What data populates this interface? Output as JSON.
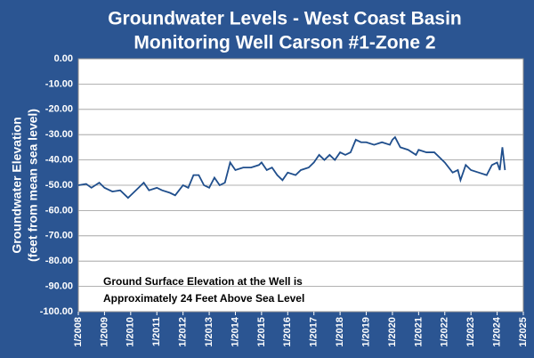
{
  "chart_data": {
    "type": "line",
    "title": [
      "Groundwater Levels - West Coast Basin",
      "Monitoring Well Carson #1-Zone 2"
    ],
    "y_label": [
      "Groundwater Elevation",
      "(feet from mean sea level)"
    ],
    "annotation": [
      "Ground Surface Elevation at the Well is",
      "Approximately 24 Feet  Above Sea Level"
    ],
    "x": [
      2008.0,
      2008.3,
      2008.5,
      2008.8,
      2009.0,
      2009.3,
      2009.6,
      2009.9,
      2010.0,
      2010.3,
      2010.5,
      2010.7,
      2011.0,
      2011.2,
      2011.5,
      2011.7,
      2012.0,
      2012.2,
      2012.4,
      2012.6,
      2012.8,
      2013.0,
      2013.2,
      2013.4,
      2013.6,
      2013.8,
      2014.0,
      2014.3,
      2014.6,
      2014.9,
      2015.0,
      2015.2,
      2015.4,
      2015.6,
      2015.8,
      2016.0,
      2016.3,
      2016.5,
      2016.8,
      2017.0,
      2017.2,
      2017.4,
      2017.6,
      2017.8,
      2018.0,
      2018.2,
      2018.4,
      2018.6,
      2018.8,
      2019.0,
      2019.3,
      2019.6,
      2019.9,
      2020.0,
      2020.1,
      2020.3,
      2020.6,
      2020.9,
      2021.0,
      2021.3,
      2021.6,
      2021.8,
      2022.0,
      2022.3,
      2022.5,
      2022.6,
      2022.8,
      2023.0,
      2023.3,
      2023.6,
      2023.8,
      2024.0,
      2024.1,
      2024.2,
      2024.3
    ],
    "series": [
      {
        "color": "#1f4e8c",
        "values": [
          -50,
          -49.5,
          -51,
          -49,
          -51,
          -52.5,
          -52,
          -55,
          -54,
          -51,
          -49,
          -52,
          -51,
          -52,
          -53,
          -54,
          -50,
          -51,
          -46,
          -46,
          -50,
          -51,
          -47,
          -50,
          -49,
          -41,
          -44,
          -43,
          -43,
          -42,
          -41,
          -44,
          -43,
          -46,
          -48,
          -45,
          -46,
          -44,
          -43,
          -41,
          -38,
          -40,
          -38,
          -40,
          -37,
          -38,
          -37,
          -32,
          -33,
          -33,
          -34,
          -33,
          -34,
          -32,
          -31,
          -35,
          -36,
          -38,
          -36,
          -37,
          -37,
          -39,
          -41,
          -45,
          -44,
          -48,
          -42,
          -44,
          -45,
          -46,
          -42,
          -41,
          -44,
          -35,
          -44
        ]
      }
    ],
    "xlim": [
      2008,
      2025
    ],
    "xticks": [
      {
        "value": 2008,
        "label": "1/2008"
      },
      {
        "value": 2009,
        "label": "1/2009"
      },
      {
        "value": 2010,
        "label": "1/2010"
      },
      {
        "value": 2011,
        "label": "1/2011"
      },
      {
        "value": 2012,
        "label": "1/2012"
      },
      {
        "value": 2013,
        "label": "1/2013"
      },
      {
        "value": 2014,
        "label": "1/2014"
      },
      {
        "value": 2015,
        "label": "1/2015"
      },
      {
        "value": 2016,
        "label": "1/2016"
      },
      {
        "value": 2017,
        "label": "1/2017"
      },
      {
        "value": 2018,
        "label": "1/2018"
      },
      {
        "value": 2019,
        "label": "1/2019"
      },
      {
        "value": 2020,
        "label": "1/2020"
      },
      {
        "value": 2021,
        "label": "1/2021"
      },
      {
        "value": 2022,
        "label": "1/2022"
      },
      {
        "value": 2023,
        "label": "1/2023"
      },
      {
        "value": 2024,
        "label": "1/2024"
      },
      {
        "value": 2025,
        "label": "1/2025"
      }
    ],
    "ylim": [
      -100,
      0
    ],
    "yticks": [
      {
        "value": 0,
        "label": "0.00"
      },
      {
        "value": -10,
        "label": "-10.00"
      },
      {
        "value": -20,
        "label": "-20.00"
      },
      {
        "value": -30,
        "label": "-30.00"
      },
      {
        "value": -40,
        "label": "-40.00"
      },
      {
        "value": -50,
        "label": "-50.00"
      },
      {
        "value": -60,
        "label": "-60.00"
      },
      {
        "value": -70,
        "label": "-70.00"
      },
      {
        "value": -80,
        "label": "-80.00"
      },
      {
        "value": -90,
        "label": "-90.00"
      },
      {
        "value": -100,
        "label": "-100.00"
      }
    ],
    "grid": true
  }
}
